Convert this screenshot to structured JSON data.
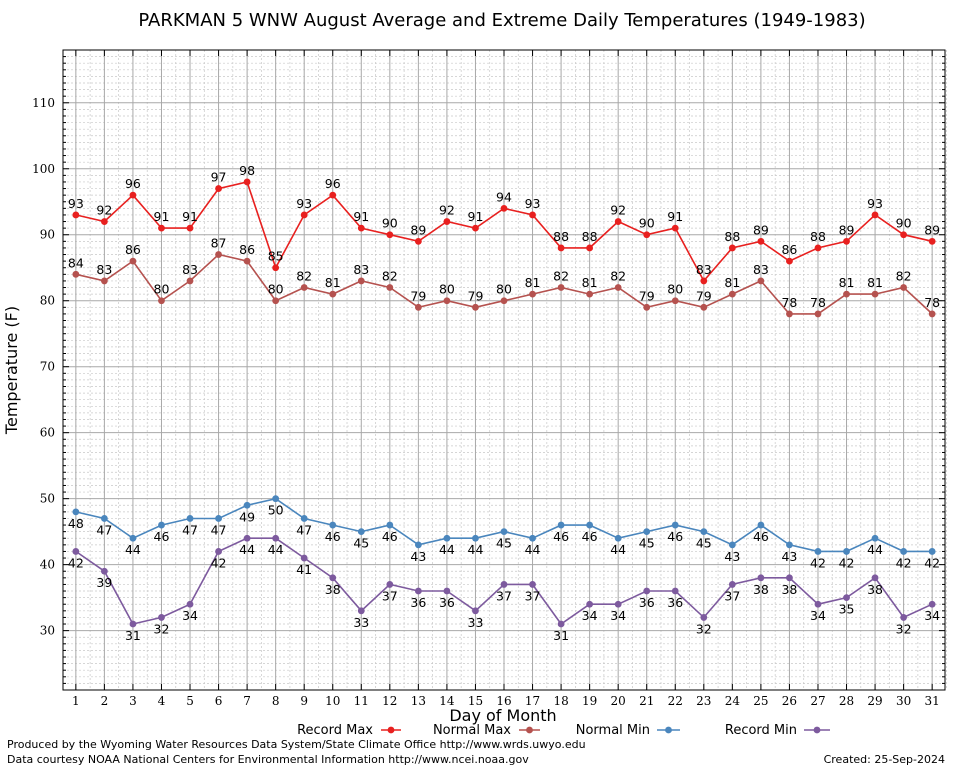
{
  "chart_data": {
    "type": "line",
    "title": "PARKMAN 5 WNW August Average and Extreme Daily Temperatures (1949-1983)",
    "xlabel": "Day of Month",
    "ylabel": "Temperature (F)",
    "x": [
      1,
      2,
      3,
      4,
      5,
      6,
      7,
      8,
      9,
      10,
      11,
      12,
      13,
      14,
      15,
      16,
      17,
      18,
      19,
      20,
      21,
      22,
      23,
      24,
      25,
      26,
      27,
      28,
      29,
      30,
      31
    ],
    "xlim": [
      0.55,
      31.45
    ],
    "ylim": [
      21,
      118
    ],
    "yticks": [
      30,
      40,
      50,
      60,
      70,
      80,
      90,
      100,
      110
    ],
    "grid": true,
    "legend_position": "bottom",
    "series": [
      {
        "name": "Record Max",
        "color": "#e8201f",
        "values": [
          93,
          92,
          96,
          91,
          91,
          97,
          98,
          85,
          93,
          96,
          91,
          90,
          89,
          92,
          91,
          94,
          93,
          88,
          88,
          92,
          90,
          91,
          83,
          88,
          89,
          86,
          88,
          89,
          93,
          90,
          89
        ]
      },
      {
        "name": "Normal Max",
        "color": "#b5524f",
        "values": [
          84,
          83,
          86,
          80,
          83,
          87,
          86,
          80,
          82,
          81,
          83,
          82,
          79,
          80,
          79,
          80,
          81,
          82,
          81,
          82,
          79,
          80,
          79,
          81,
          83,
          78,
          78,
          81,
          81,
          82,
          78
        ]
      },
      {
        "name": "Normal Min",
        "color": "#4a86bd",
        "values": [
          48,
          47,
          44,
          46,
          47,
          47,
          49,
          50,
          47,
          46,
          45,
          46,
          43,
          44,
          44,
          45,
          44,
          46,
          46,
          44,
          45,
          46,
          45,
          43,
          46,
          43,
          42,
          42,
          44,
          42,
          42
        ]
      },
      {
        "name": "Record Min",
        "color": "#7d5a9e",
        "values": [
          42,
          39,
          31,
          32,
          34,
          42,
          44,
          44,
          41,
          38,
          33,
          37,
          36,
          36,
          33,
          37,
          37,
          31,
          34,
          34,
          36,
          36,
          32,
          37,
          38,
          38,
          34,
          35,
          38,
          32,
          34
        ]
      }
    ]
  },
  "footer": {
    "produced_by": "Produced by the Wyoming Water Resources Data System/State Climate Office http://www.wrds.uwyo.edu",
    "courtesy": "Data courtesy NOAA National Centers for Environmental Information http://www.ncei.noaa.gov",
    "created": "Created:  25-Sep-2024"
  }
}
